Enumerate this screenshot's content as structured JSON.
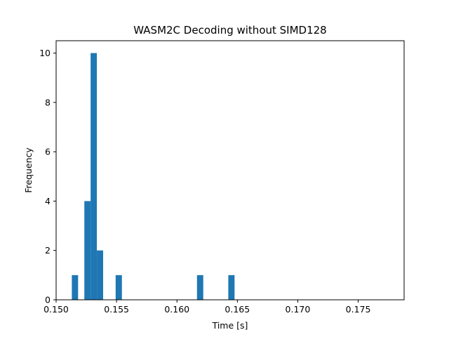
{
  "chart_data": {
    "type": "bar",
    "title": "WASM2C Decoding without SIMD128",
    "xlabel": "Time [s]",
    "ylabel": "Frequency",
    "xlim": [
      0.15,
      0.1788
    ],
    "ylim": [
      0,
      10.5
    ],
    "xticks": [
      0.15,
      0.155,
      0.16,
      0.165,
      0.17,
      0.175
    ],
    "xtick_labels": [
      "0.150",
      "0.155",
      "0.160",
      "0.165",
      "0.170",
      "0.175"
    ],
    "yticks": [
      0,
      2,
      4,
      6,
      8,
      10
    ],
    "ytick_labels": [
      "0",
      "2",
      "4",
      "6",
      "8",
      "10"
    ],
    "bin_start": 0.1513,
    "bin_width": 0.000518,
    "counts": [
      1,
      0,
      4,
      10,
      2,
      0,
      0,
      1,
      0,
      0,
      0,
      0,
      0,
      0,
      0,
      0,
      0,
      0,
      0,
      0,
      1,
      0,
      0,
      0,
      0,
      1
    ],
    "bar_color": "#1f77b4",
    "grid": false,
    "legend": "none"
  }
}
